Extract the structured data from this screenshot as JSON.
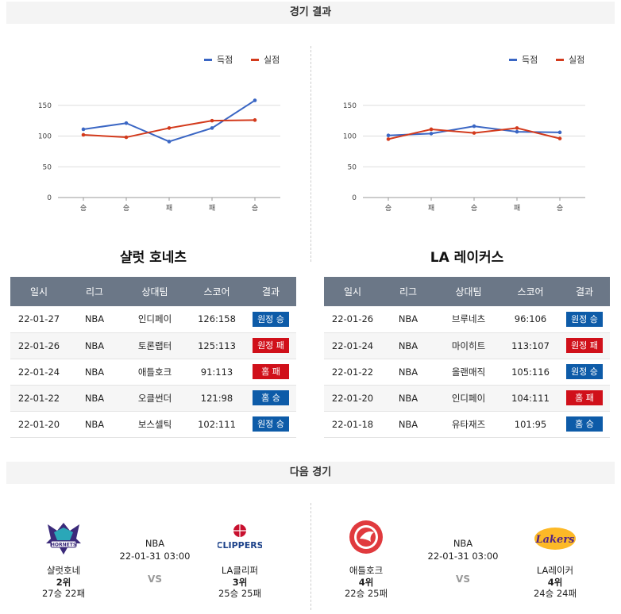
{
  "results_header": "경기 결과",
  "next_header": "다음 경기",
  "legend": {
    "score": "득점",
    "conceded": "실점"
  },
  "colors": {
    "score": "#3a66c4",
    "conceded": "#d33a1c",
    "win": "#0d5ba8",
    "loss": "#d0101a"
  },
  "chart_data": [
    {
      "type": "line",
      "categories": [
        "승",
        "승",
        "패",
        "패",
        "승"
      ],
      "ylim": [
        0,
        160
      ],
      "yticks": [
        0,
        50,
        100,
        150
      ],
      "series": [
        {
          "name": "득점",
          "values": [
            111,
            121,
            91,
            113,
            158
          ]
        },
        {
          "name": "실점",
          "values": [
            102,
            98,
            113,
            125,
            126
          ]
        }
      ]
    },
    {
      "type": "line",
      "categories": [
        "승",
        "패",
        "승",
        "패",
        "승"
      ],
      "ylim": [
        0,
        160
      ],
      "yticks": [
        0,
        50,
        100,
        150
      ],
      "series": [
        {
          "name": "득점",
          "values": [
            101,
            104,
            116,
            107,
            106
          ]
        },
        {
          "name": "실점",
          "values": [
            95,
            111,
            105,
            113,
            96
          ]
        }
      ]
    }
  ],
  "teams": [
    {
      "name": "샬럿 호네츠",
      "columns": [
        "일시",
        "리그",
        "상대팀",
        "스코어",
        "결과"
      ],
      "rows": [
        {
          "date": "22-01-27",
          "league": "NBA",
          "opp": "인디페이",
          "score": "126:158",
          "result": "원정 승",
          "win": true
        },
        {
          "date": "22-01-26",
          "league": "NBA",
          "opp": "토론랩터",
          "score": "125:113",
          "result": "원정 패",
          "win": false
        },
        {
          "date": "22-01-24",
          "league": "NBA",
          "opp": "애틀호크",
          "score": "91:113",
          "result": "홈 패",
          "win": false
        },
        {
          "date": "22-01-22",
          "league": "NBA",
          "opp": "오클썬더",
          "score": "121:98",
          "result": "홈 승",
          "win": true
        },
        {
          "date": "22-01-20",
          "league": "NBA",
          "opp": "보스셀틱",
          "score": "102:111",
          "result": "원정 승",
          "win": true
        }
      ]
    },
    {
      "name": "LA 레이커스",
      "columns": [
        "일시",
        "리그",
        "상대팀",
        "스코어",
        "결과"
      ],
      "rows": [
        {
          "date": "22-01-26",
          "league": "NBA",
          "opp": "브루네츠",
          "score": "96:106",
          "result": "원정 승",
          "win": true
        },
        {
          "date": "22-01-24",
          "league": "NBA",
          "opp": "마이히트",
          "score": "113:107",
          "result": "원정 패",
          "win": false
        },
        {
          "date": "22-01-22",
          "league": "NBA",
          "opp": "올랜매직",
          "score": "105:116",
          "result": "원정 승",
          "win": true
        },
        {
          "date": "22-01-20",
          "league": "NBA",
          "opp": "인디페이",
          "score": "104:111",
          "result": "홈 패",
          "win": false
        },
        {
          "date": "22-01-18",
          "league": "NBA",
          "opp": "유타재즈",
          "score": "101:95",
          "result": "홈 승",
          "win": true
        }
      ]
    }
  ],
  "matches": [
    {
      "league": "NBA",
      "datetime": "22-01-31 03:00",
      "vs": "VS",
      "home": {
        "name": "샬럿호네",
        "rank": "2위",
        "record": "27승 22패"
      },
      "away": {
        "name": "LA클리퍼",
        "rank": "3위",
        "record": "25승 25패",
        "logo_text": "CLIPPERS"
      }
    },
    {
      "league": "NBA",
      "datetime": "22-01-31 03:00",
      "vs": "VS",
      "home": {
        "name": "애틀호크",
        "rank": "4위",
        "record": "22승 25패"
      },
      "away": {
        "name": "LA레이커",
        "rank": "4위",
        "record": "24승 24패",
        "logo_text": "Lakers"
      }
    }
  ]
}
